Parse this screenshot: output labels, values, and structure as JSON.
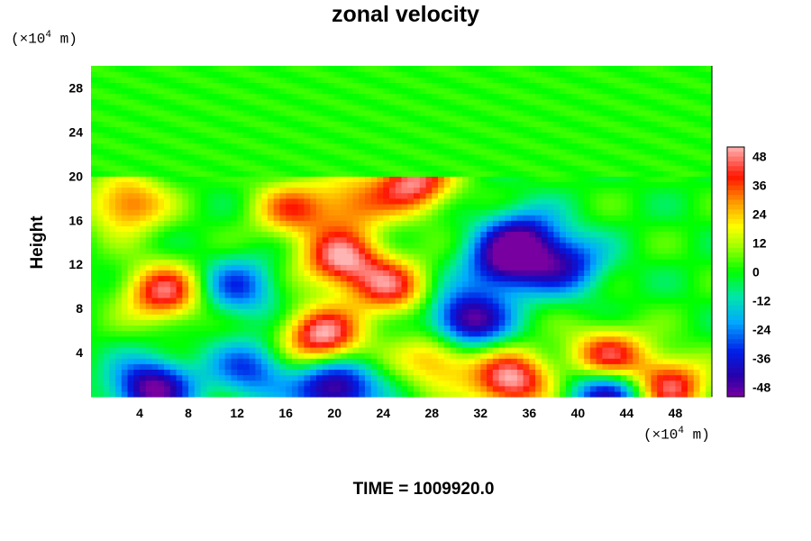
{
  "chart_data": {
    "type": "heatmap",
    "title": "zonal velocity",
    "ylabel": "Height",
    "x_unit_prefix": "(×10",
    "x_unit_exp": "4",
    "x_unit_suffix": " m)",
    "y_unit_prefix": "(×10",
    "y_unit_exp": "4",
    "y_unit_suffix": " m)",
    "xlim": [
      0,
      51
    ],
    "ylim": [
      0,
      30
    ],
    "x_ticks": [
      4,
      8,
      12,
      16,
      20,
      24,
      28,
      32,
      36,
      40,
      44,
      48
    ],
    "y_ticks": [
      4,
      8,
      12,
      16,
      20,
      24,
      28
    ],
    "colorbar": {
      "range": [
        -52,
        52
      ],
      "ticks": [
        48,
        36,
        24,
        12,
        0,
        -12,
        -24,
        -36,
        -48
      ]
    },
    "background_value": 0,
    "upper_layer_value": 2,
    "features": [
      {
        "x": 6,
        "y": 9.5,
        "value": 45
      },
      {
        "x": 3,
        "y": 17.5,
        "value": 35
      },
      {
        "x": 16.5,
        "y": 17,
        "value": 32
      },
      {
        "x": 21.5,
        "y": 17.5,
        "value": 28
      },
      {
        "x": 20.5,
        "y": 12.5,
        "value": 48
      },
      {
        "x": 24.5,
        "y": 10,
        "value": 40
      },
      {
        "x": 26.5,
        "y": 19.5,
        "value": 48
      },
      {
        "x": 19,
        "y": 5.5,
        "value": 52
      },
      {
        "x": 28.5,
        "y": 3.5,
        "value": 30
      },
      {
        "x": 34.5,
        "y": 1.5,
        "value": 52
      },
      {
        "x": 42.5,
        "y": 3.5,
        "value": 48
      },
      {
        "x": 47.5,
        "y": 1,
        "value": 45
      },
      {
        "x": 34,
        "y": 12,
        "value": -42
      },
      {
        "x": 31,
        "y": 7,
        "value": -52
      },
      {
        "x": 35.5,
        "y": 14.5,
        "value": -38
      },
      {
        "x": 39,
        "y": 12,
        "value": -35
      },
      {
        "x": 5,
        "y": 0.8,
        "value": -52
      },
      {
        "x": 20,
        "y": 0.8,
        "value": -52
      },
      {
        "x": 42.5,
        "y": 0.5,
        "value": -48
      },
      {
        "x": 12,
        "y": 10,
        "value": -30
      },
      {
        "x": 13,
        "y": 2.5,
        "value": -30
      }
    ]
  },
  "footer": {
    "time_label": "TIME = 1009920.0"
  }
}
